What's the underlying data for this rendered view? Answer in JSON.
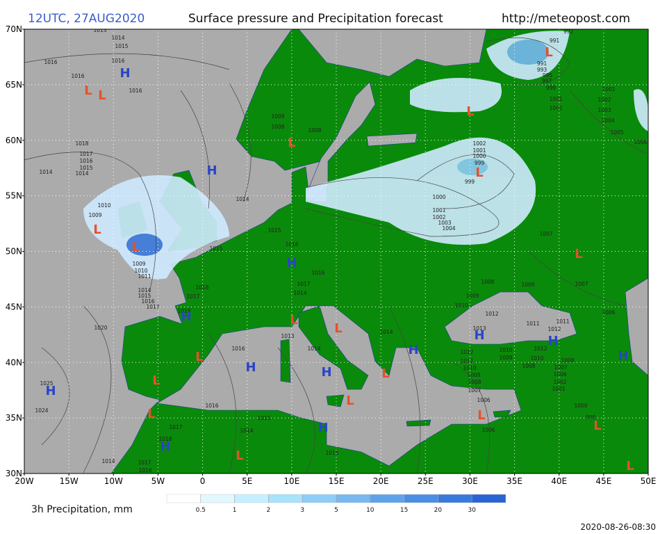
{
  "header": {
    "time": "12UTC, 27AUG2020",
    "title": "Surface pressure and Precipitation forecast",
    "url": "http://meteopost.com"
  },
  "lat_labels": [
    "70N",
    "65N",
    "60N",
    "55N",
    "50N",
    "45N",
    "40N",
    "35N",
    "30N"
  ],
  "lon_labels": [
    "20W",
    "15W",
    "10W",
    "5W",
    "0",
    "5E",
    "10E",
    "15E",
    "20E",
    "25E",
    "30E",
    "35E",
    "40E",
    "45E",
    "50E"
  ],
  "pressure_centers": [
    "H",
    "L",
    "L",
    "H",
    "L",
    "L",
    "L",
    "L",
    "L",
    "L",
    "H",
    "L",
    "H",
    "L",
    "L",
    "H",
    "H",
    "H",
    "H",
    "L",
    "H",
    "H",
    "L",
    "L",
    "H",
    "L",
    "L",
    "L",
    "H",
    "L",
    "H",
    "L",
    "L"
  ],
  "center_colors": {
    "H": "#2a44c8",
    "L": "#e8502a"
  },
  "isobar_labels": [
    "1013",
    "1014",
    "1015",
    "1016",
    "1016",
    "1016",
    "1016",
    "1018",
    "1017",
    "1016",
    "1015",
    "1014",
    "1014",
    "1010",
    "1009",
    "1009",
    "1010",
    "1011",
    "1014",
    "1015",
    "1016",
    "1017",
    "1018",
    "1017",
    "1016",
    "1020",
    "1025",
    "1024",
    "1016",
    "1013",
    "1014",
    "1016",
    "1015",
    "1017",
    "1014",
    "1018",
    "1014",
    "1017",
    "1016",
    "1015",
    "1014",
    "1015",
    "1015",
    "1016",
    "1016",
    "1017",
    "1014",
    "1014",
    "1009",
    "1008",
    "1008",
    "1002",
    "1001",
    "1000",
    "999",
    "999",
    "1000",
    "1001",
    "1002",
    "1003",
    "1004",
    "992",
    "991",
    "991",
    "993",
    "995",
    "997",
    "999",
    "1001",
    "1002",
    "1001",
    "1002",
    "1003",
    "1004",
    "1005",
    "1006",
    "1007",
    "1007",
    "1009",
    "1008",
    "1009",
    "1010",
    "1012",
    "1013",
    "1011",
    "1012",
    "1011",
    "1012",
    "1010",
    "1009",
    "1010",
    "1008",
    "1008",
    "1007",
    "1006",
    "1002",
    "1001",
    "1000",
    "999",
    "1012",
    "1011",
    "1010",
    "1009",
    "1008",
    "1007",
    "1006",
    "1006",
    "1006"
  ],
  "legend": {
    "label": "3h Precipitation, mm",
    "levels": [
      0.5,
      1,
      2,
      3,
      5,
      10,
      15,
      20,
      30
    ],
    "colors": [
      "#ffffff",
      "#e2f8ff",
      "#c6f0ff",
      "#a8e2fb",
      "#8ecdf5",
      "#76b8ef",
      "#5ea2ea",
      "#4a8ee3",
      "#387adc",
      "#2a64d2"
    ]
  },
  "timestamp": "2020-08-26-08:30"
}
